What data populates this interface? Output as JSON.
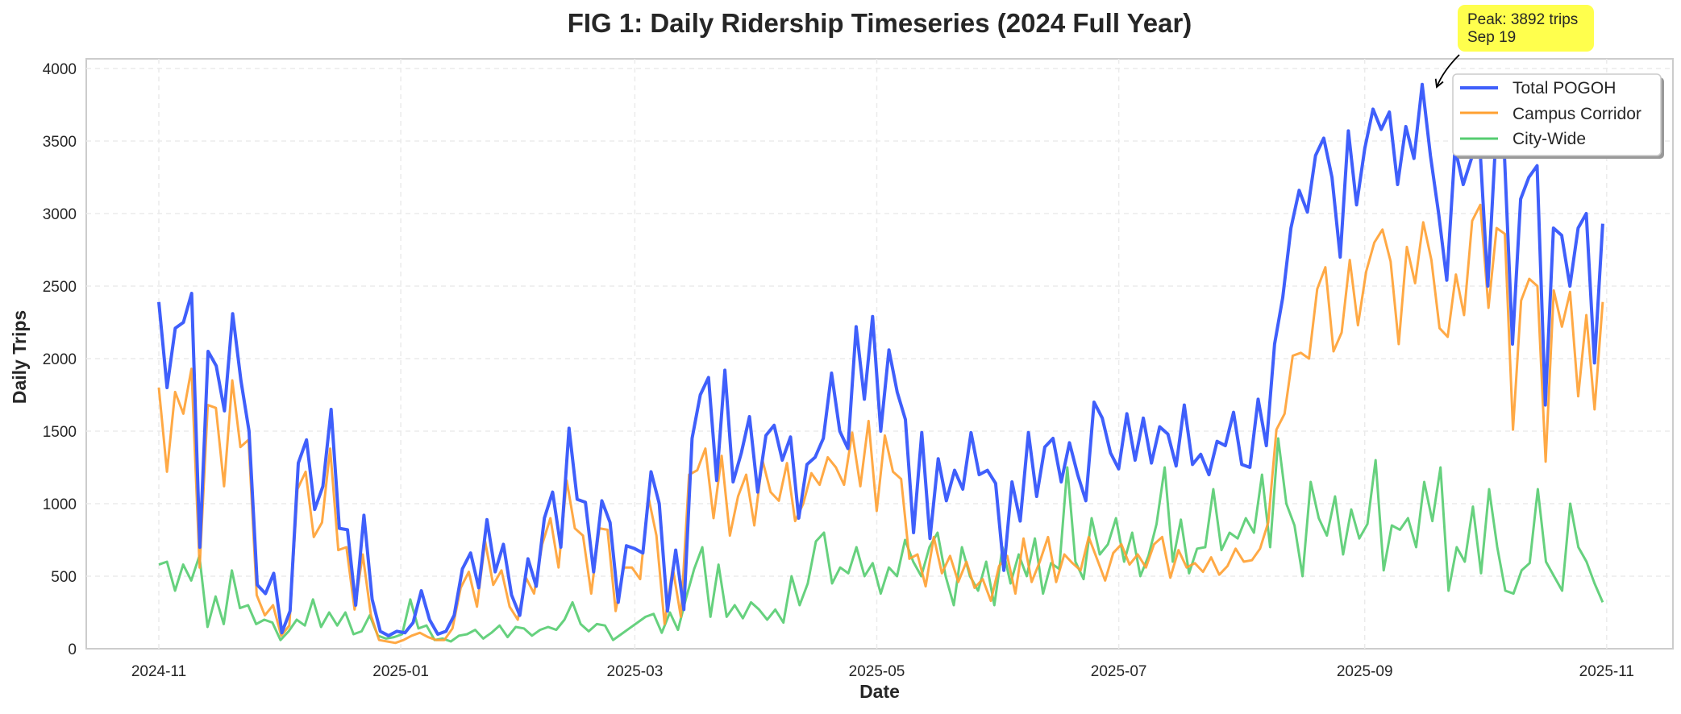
{
  "chart_data": {
    "type": "line",
    "title": "FIG 1: Daily Ridership Timeseries (2024 Full Year)",
    "xlabel": "Date",
    "ylabel": "Daily Trips",
    "ylim": [
      0,
      4100
    ],
    "yticks": [
      0,
      500,
      1000,
      1500,
      2000,
      2500,
      3000,
      3500,
      4000
    ],
    "xticks": [
      "2024-11",
      "2025-01",
      "2025-03",
      "2025-05",
      "2025-07",
      "2025-09",
      "2025-11"
    ],
    "xtick_days": [
      0,
      61,
      120,
      181,
      242,
      304,
      365
    ],
    "x_start": "2024-11-01",
    "x_step_days": 3,
    "grid": true,
    "legend_position": "upper right",
    "series": [
      {
        "name": "Total POGOH",
        "color": "#3f5ffb",
        "width": 4,
        "values": [
          2390,
          1800,
          2210,
          2250,
          2450,
          700,
          2050,
          1950,
          1640,
          2310,
          1850,
          1500,
          440,
          380,
          520,
          110,
          260,
          1280,
          1440,
          960,
          1120,
          1650,
          830,
          820,
          300,
          920,
          340,
          120,
          90,
          120,
          110,
          180,
          400,
          200,
          100,
          120,
          230,
          550,
          660,
          420,
          890,
          530,
          720,
          370,
          230,
          620,
          430,
          900,
          1080,
          700,
          1520,
          1030,
          1010,
          530,
          1020,
          870,
          320,
          710,
          690,
          660,
          1220,
          1000,
          260,
          680,
          270,
          1450,
          1750,
          1870,
          1160,
          1920,
          1150,
          1350,
          1600,
          1080,
          1470,
          1540,
          1300,
          1460,
          900,
          1270,
          1320,
          1450,
          1900,
          1500,
          1380,
          2220,
          1720,
          2290,
          1500,
          2060,
          1770,
          1580,
          800,
          1490,
          760,
          1310,
          1020,
          1230,
          1100,
          1490,
          1200,
          1230,
          1140,
          540,
          1150,
          880,
          1490,
          1050,
          1390,
          1450,
          1150,
          1420,
          1200,
          1020,
          1700,
          1590,
          1350,
          1240,
          1620,
          1300,
          1590,
          1280,
          1530,
          1480,
          1260,
          1680,
          1270,
          1340,
          1200,
          1430,
          1400,
          1630,
          1270,
          1250,
          1720,
          1400,
          2100,
          2420,
          2900,
          3160,
          3010,
          3400,
          3520,
          3250,
          2700,
          3570,
          3060,
          3450,
          3720,
          3580,
          3700,
          3200,
          3600,
          3380,
          3890,
          3400,
          3000,
          2540,
          3450,
          3200,
          3380,
          3500,
          2500,
          3550,
          3430,
          2100,
          3100,
          3250,
          3330,
          1680,
          2900,
          2850,
          2500,
          2900,
          3000,
          1970,
          2930
        ]
      },
      {
        "name": "Campus Corridor",
        "color": "#ffa031",
        "width": 3,
        "values": [
          1800,
          1220,
          1770,
          1620,
          1930,
          560,
          1680,
          1660,
          1120,
          1850,
          1390,
          1440,
          370,
          230,
          300,
          90,
          160,
          1100,
          1220,
          770,
          870,
          1380,
          680,
          700,
          270,
          650,
          230,
          60,
          50,
          40,
          60,
          90,
          110,
          80,
          60,
          60,
          140,
          420,
          530,
          290,
          740,
          440,
          540,
          290,
          200,
          490,
          380,
          720,
          900,
          560,
          1160,
          830,
          780,
          380,
          830,
          820,
          260,
          560,
          560,
          480,
          1050,
          780,
          170,
          560,
          220,
          1200,
          1230,
          1380,
          900,
          1330,
          780,
          1050,
          1200,
          850,
          1300,
          1080,
          1020,
          1280,
          880,
          1000,
          1210,
          1130,
          1320,
          1250,
          1130,
          1490,
          1120,
          1570,
          950,
          1470,
          1220,
          1170,
          620,
          650,
          430,
          770,
          520,
          640,
          460,
          600,
          420,
          480,
          330,
          570,
          640,
          380,
          760,
          460,
          600,
          770,
          460,
          650,
          590,
          540,
          770,
          620,
          470,
          660,
          720,
          580,
          650,
          560,
          720,
          770,
          490,
          680,
          560,
          590,
          530,
          630,
          510,
          570,
          690,
          600,
          610,
          690,
          870,
          1510,
          1620,
          2020,
          2040,
          2000,
          2480,
          2630,
          2050,
          2180,
          2680,
          2230,
          2600,
          2800,
          2890,
          2670,
          2100,
          2770,
          2520,
          2940,
          2680,
          2210,
          2150,
          2580,
          2300,
          2950,
          3060,
          2350,
          2900,
          2860,
          1510,
          2400,
          2550,
          2500,
          1290,
          2470,
          2220,
          2460,
          1740,
          2300,
          1650,
          2390
        ]
      },
      {
        "name": "City-Wide",
        "color": "#55cc70",
        "width": 3,
        "values": [
          580,
          600,
          400,
          580,
          470,
          640,
          150,
          360,
          170,
          540,
          280,
          300,
          170,
          200,
          180,
          60,
          120,
          200,
          160,
          340,
          150,
          250,
          160,
          250,
          100,
          120,
          230,
          90,
          70,
          80,
          100,
          340,
          140,
          160,
          60,
          70,
          50,
          90,
          100,
          130,
          70,
          110,
          160,
          80,
          150,
          140,
          90,
          130,
          150,
          130,
          200,
          320,
          170,
          120,
          170,
          160,
          60,
          100,
          140,
          180,
          220,
          240,
          110,
          250,
          130,
          350,
          550,
          700,
          220,
          580,
          220,
          300,
          210,
          320,
          270,
          200,
          270,
          180,
          500,
          300,
          450,
          740,
          800,
          450,
          560,
          520,
          700,
          500,
          590,
          380,
          560,
          500,
          750,
          600,
          500,
          700,
          800,
          500,
          300,
          700,
          500,
          400,
          600,
          300,
          700,
          450,
          650,
          500,
          760,
          380,
          590,
          550,
          1250,
          600,
          480,
          900,
          650,
          720,
          900,
          600,
          800,
          500,
          640,
          860,
          1250,
          600,
          890,
          520,
          690,
          700,
          1100,
          680,
          800,
          760,
          900,
          800,
          1200,
          700,
          1450,
          1000,
          850,
          500,
          1150,
          900,
          780,
          1050,
          650,
          960,
          760,
          860,
          1300,
          540,
          850,
          820,
          900,
          700,
          1150,
          880,
          1250,
          400,
          700,
          600,
          980,
          520,
          1100,
          700,
          400,
          380,
          540,
          590,
          1100,
          600,
          500,
          400,
          1000,
          700,
          600,
          450,
          320
        ]
      }
    ]
  },
  "annotation": {
    "line1": "Peak: 3892 trips",
    "line2": "Sep 19",
    "peak_value": 3892,
    "peak_day": 322,
    "box_color": "#ffff4d"
  },
  "legend": {
    "items": [
      "Total POGOH",
      "Campus Corridor",
      "City-Wide"
    ]
  }
}
